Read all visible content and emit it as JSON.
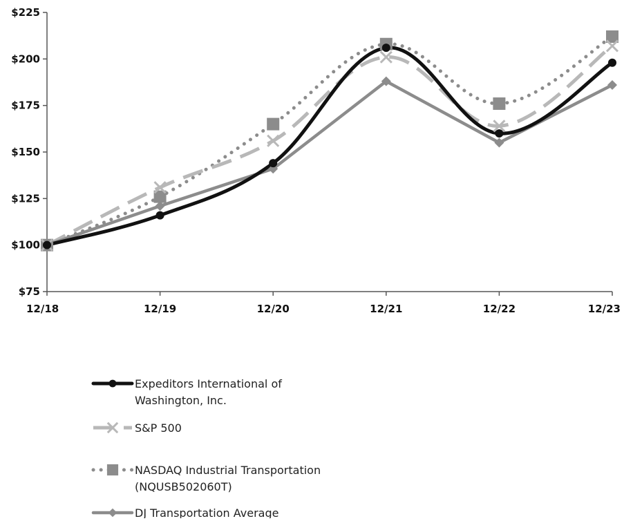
{
  "chart_data": {
    "type": "line",
    "x": [
      "12/18",
      "12/19",
      "12/20",
      "12/21",
      "12/22",
      "12/23"
    ],
    "ylim": [
      75,
      225
    ],
    "yticks": [
      75,
      100,
      125,
      150,
      175,
      200,
      225
    ],
    "ytick_labels": [
      "$75",
      "$100",
      "$125",
      "$150",
      "$175",
      "$200",
      "$225"
    ],
    "grid": false,
    "legend_position": "bottom",
    "series": [
      {
        "name": "Expeditors International of Washington, Inc.",
        "legend_lines": [
          "Expeditors International of",
          "Washington, Inc."
        ],
        "values": [
          100,
          116,
          144,
          206,
          160,
          198
        ],
        "color": "#111111",
        "style": "solid",
        "marker": "circle"
      },
      {
        "name": "S&P 500",
        "legend_lines": [
          "S&P 500"
        ],
        "values": [
          100,
          131,
          156,
          201,
          164,
          207
        ],
        "color": "#b8b8b8",
        "style": "dashed",
        "marker": "x"
      },
      {
        "name": "NASDAQ Industrial Transportation (NQUSB502060T)",
        "legend_lines": [
          "NASDAQ Industrial Transportation",
          "(NQUSB502060T)"
        ],
        "values": [
          100,
          126,
          165,
          208,
          176,
          212
        ],
        "color": "#8c8c8c",
        "style": "dotted",
        "marker": "square"
      },
      {
        "name": "DJ Transportation Average",
        "legend_lines": [
          "DJ Transportation Average"
        ],
        "values": [
          100,
          121,
          141,
          188,
          155,
          186
        ],
        "color": "#8c8c8c",
        "style": "solid",
        "marker": "diamond"
      }
    ]
  }
}
